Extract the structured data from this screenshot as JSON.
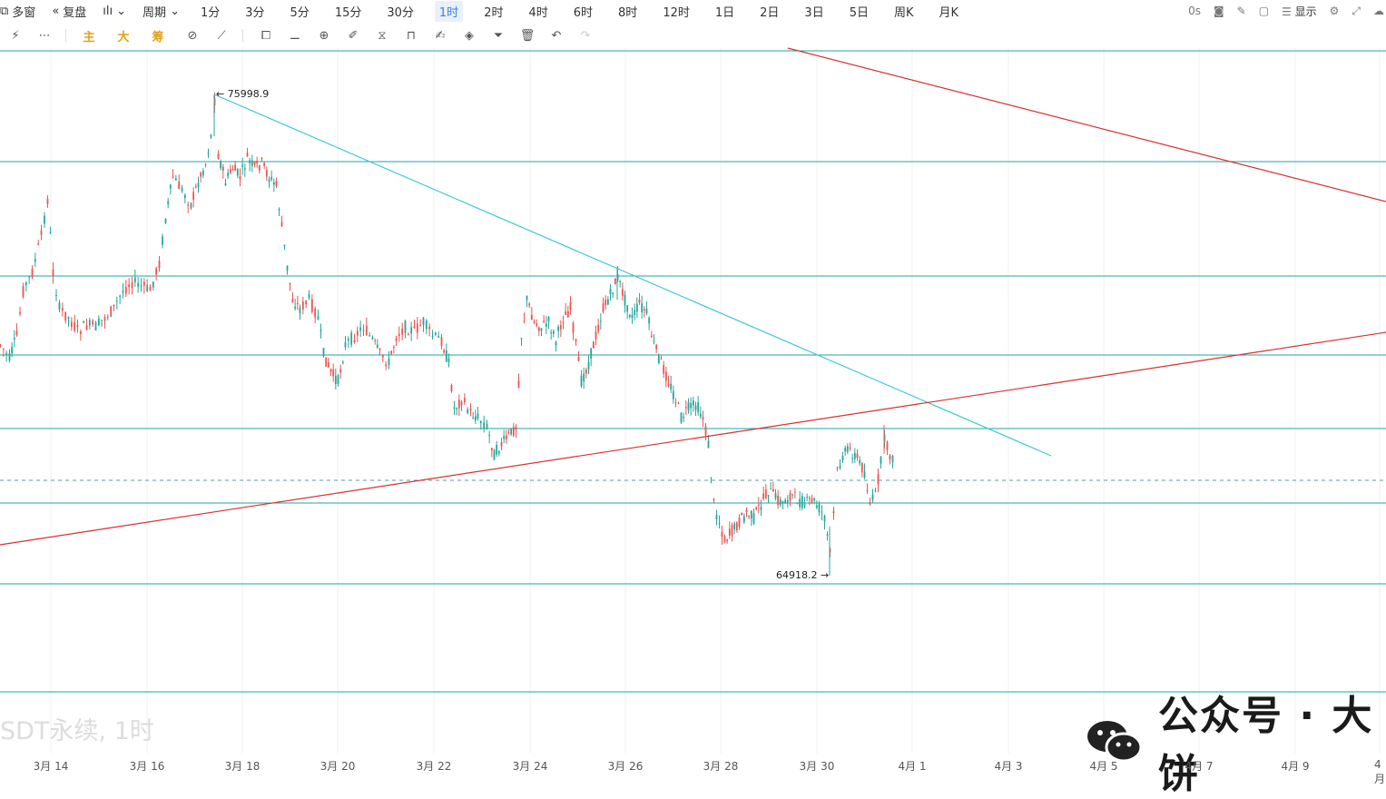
{
  "topbar": {
    "multi_window": "多窗",
    "replay": "复盘",
    "period_label": "周期",
    "periods": [
      "1分",
      "3分",
      "5分",
      "15分",
      "30分",
      "1时",
      "2时",
      "4时",
      "6时",
      "8时",
      "12时",
      "1日",
      "2日",
      "3日",
      "5日",
      "周K",
      "月K"
    ],
    "active_period": "1时",
    "right": {
      "latency": "0s",
      "display": "显示"
    }
  },
  "toolbar": {
    "text_buttons": [
      "主",
      "大",
      "筹"
    ],
    "icons": [
      "magic-wand-icon",
      "more-icon",
      "indicator-icon",
      "draw-tool-icon",
      "shape-icon",
      "ruler-icon",
      "zoom-icon",
      "pen-icon",
      "measure-icon",
      "lock-icon",
      "edit-icon",
      "magnet-icon",
      "filter-icon",
      "trash-icon",
      "undo-icon",
      "redo-icon"
    ]
  },
  "chart": {
    "symbol_watermark": "SDT永续, 1时",
    "high_label": "75998.9",
    "low_label": "64918.2",
    "high_value": 75998.9,
    "low_value": 64918.2,
    "x_labels": [
      "3月 14",
      "3月 16",
      "3月 18",
      "3月 20",
      "3月 22",
      "3月 24",
      "3月 26",
      "3月 28",
      "3月 30",
      "4月 1",
      "4月 3",
      "4月 5",
      "4月 7",
      "4月 9",
      "4月"
    ],
    "colors": {
      "up": "#26a69a",
      "down": "#ef5350",
      "hline": "#21a5a5",
      "trend_cyan": "#3fc7d6",
      "trend_red": "#d9302f",
      "grid": "#f2f2f2",
      "dash": "#4f9fa8"
    }
  },
  "watermark": {
    "text": "公众号 · 大饼"
  }
}
